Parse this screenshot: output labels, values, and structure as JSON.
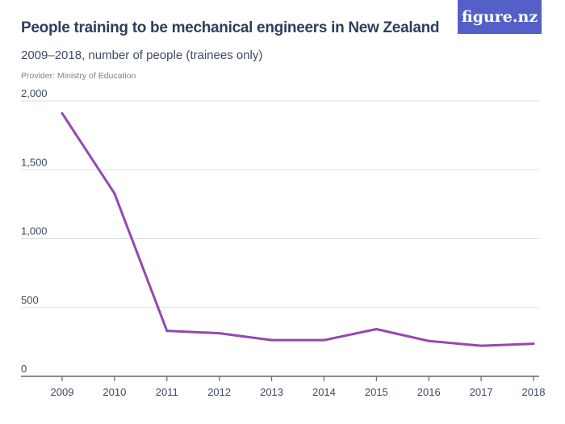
{
  "header": {
    "title": "People training to be mechanical engineers in New Zealand",
    "subtitle": "2009–2018, number of people (trainees only)",
    "provider": "Provider: Ministry of Education",
    "logo": "figure.nz"
  },
  "chart_data": {
    "type": "line",
    "title": "People training to be mechanical engineers in New Zealand",
    "subtitle": "2009–2018, number of people (trainees only)",
    "x": [
      "2009",
      "2010",
      "2011",
      "2012",
      "2013",
      "2014",
      "2015",
      "2016",
      "2017",
      "2018"
    ],
    "series": [
      {
        "values": [
          1910,
          1328,
          331,
          313,
          263,
          263,
          343,
          257,
          222,
          237
        ],
        "color": "#9349b0"
      }
    ],
    "ylim": [
      0,
      2000
    ],
    "yticks": [
      0,
      500,
      1000,
      1500,
      2000
    ],
    "ytick_labels": [
      "0",
      "500",
      "1,000",
      "1,500",
      "2,000"
    ],
    "grid": true,
    "colors": {
      "line": "#9349b0",
      "logo_bg": "#5460c8",
      "grid": "#dddddd"
    }
  }
}
